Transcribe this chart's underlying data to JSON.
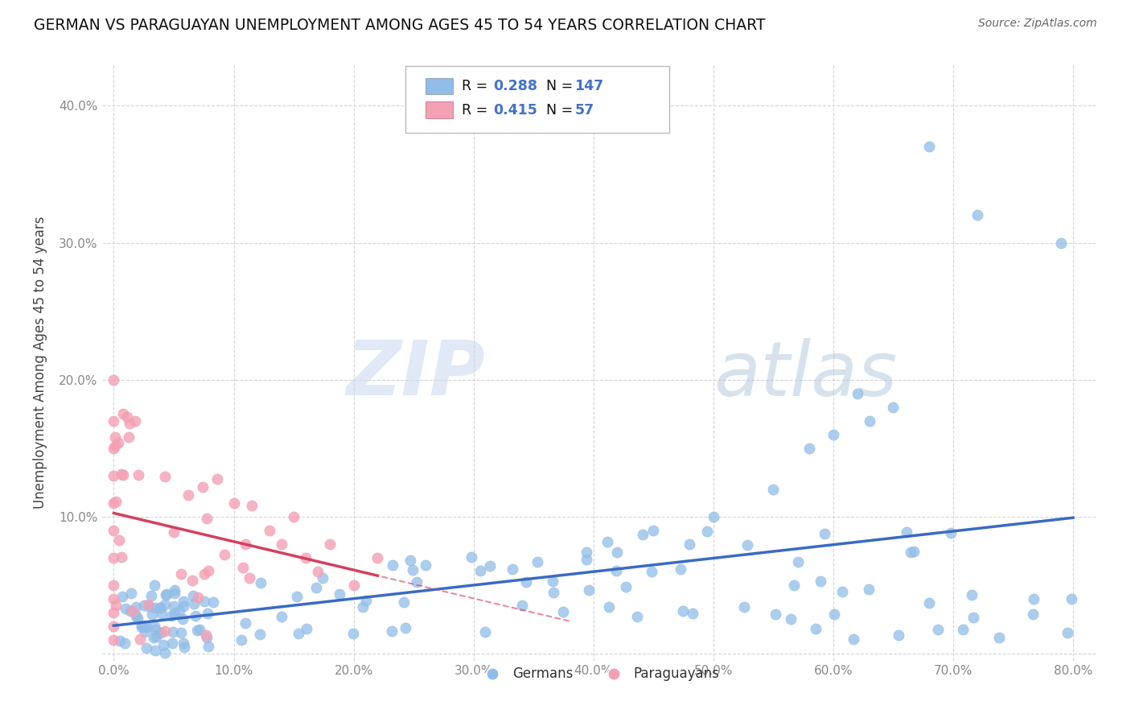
{
  "title": "GERMAN VS PARAGUAYAN UNEMPLOYMENT AMONG AGES 45 TO 54 YEARS CORRELATION CHART",
  "source": "Source: ZipAtlas.com",
  "ylabel": "Unemployment Among Ages 45 to 54 years",
  "xlim": [
    -0.01,
    0.82
  ],
  "ylim": [
    -0.005,
    0.43
  ],
  "xticks": [
    0.0,
    0.1,
    0.2,
    0.3,
    0.4,
    0.5,
    0.6,
    0.7,
    0.8
  ],
  "xticklabels": [
    "0.0%",
    "10.0%",
    "20.0%",
    "30.0%",
    "40.0%",
    "50.0%",
    "60.0%",
    "70.0%",
    "80.0%"
  ],
  "yticks": [
    0.0,
    0.1,
    0.2,
    0.3,
    0.4
  ],
  "yticklabels": [
    "",
    "10.0%",
    "20.0%",
    "30.0%",
    "40.0%"
  ],
  "german_color": "#92BDE8",
  "paraguayan_color": "#F4A0B5",
  "german_line_color": "#3A6BC4",
  "paraguayan_line_color": "#D44060",
  "R_german": 0.288,
  "N_german": 147,
  "R_paraguayan": 0.415,
  "N_paraguayan": 57,
  "watermark_zip": "ZIP",
  "watermark_atlas": "atlas",
  "background_color": "#ffffff",
  "legend_text_color": "#4472C4",
  "tick_color": "#888888",
  "grid_color": "#cccccc"
}
